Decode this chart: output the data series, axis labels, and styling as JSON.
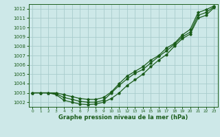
{
  "title": "Graphe pression niveau de la mer (hPa)",
  "bg_color": "#cde8e8",
  "grid_color": "#a8cccc",
  "line_color": "#1a5c1a",
  "xlim": [
    -0.5,
    23.5
  ],
  "ylim": [
    1001.5,
    1012.5
  ],
  "xticks": [
    0,
    1,
    2,
    3,
    4,
    5,
    6,
    7,
    8,
    9,
    10,
    11,
    12,
    13,
    14,
    15,
    16,
    17,
    18,
    19,
    20,
    21,
    22,
    23
  ],
  "yticks": [
    1002,
    1003,
    1004,
    1005,
    1006,
    1007,
    1008,
    1009,
    1010,
    1011,
    1012
  ],
  "series1_x": [
    0,
    1,
    2,
    3,
    4,
    5,
    6,
    7,
    8,
    9,
    10,
    11,
    12,
    13,
    14,
    15,
    16,
    17,
    18,
    19,
    20,
    21,
    22,
    23
  ],
  "series1_y": [
    1003.0,
    1003.0,
    1003.0,
    1002.8,
    1002.2,
    1002.0,
    1001.8,
    1001.75,
    1001.8,
    1002.0,
    1002.4,
    1003.0,
    1003.8,
    1004.4,
    1005.0,
    1005.8,
    1006.5,
    1007.1,
    1008.0,
    1008.8,
    1009.3,
    1011.0,
    1011.3,
    1012.1
  ],
  "series2_x": [
    0,
    1,
    2,
    3,
    4,
    5,
    6,
    7,
    8,
    9,
    10,
    11,
    12,
    13,
    14,
    15,
    16,
    17,
    18,
    19,
    20,
    21,
    22,
    23
  ],
  "series2_y": [
    1003.0,
    1003.0,
    1003.0,
    1002.9,
    1002.5,
    1002.3,
    1002.1,
    1002.0,
    1002.0,
    1002.2,
    1003.0,
    1003.8,
    1004.5,
    1005.1,
    1005.5,
    1006.2,
    1006.9,
    1007.5,
    1008.2,
    1009.0,
    1009.5,
    1011.3,
    1011.6,
    1012.2
  ],
  "series3_x": [
    0,
    1,
    2,
    3,
    4,
    5,
    6,
    7,
    8,
    9,
    10,
    11,
    12,
    13,
    14,
    15,
    16,
    17,
    18,
    19,
    20,
    21,
    22,
    23
  ],
  "series3_y": [
    1003.0,
    1003.0,
    1003.0,
    1003.0,
    1002.8,
    1002.6,
    1002.4,
    1002.3,
    1002.3,
    1002.5,
    1003.1,
    1004.0,
    1004.8,
    1005.3,
    1005.8,
    1006.5,
    1007.0,
    1007.8,
    1008.3,
    1009.2,
    1009.8,
    1011.6,
    1011.9,
    1012.3
  ]
}
